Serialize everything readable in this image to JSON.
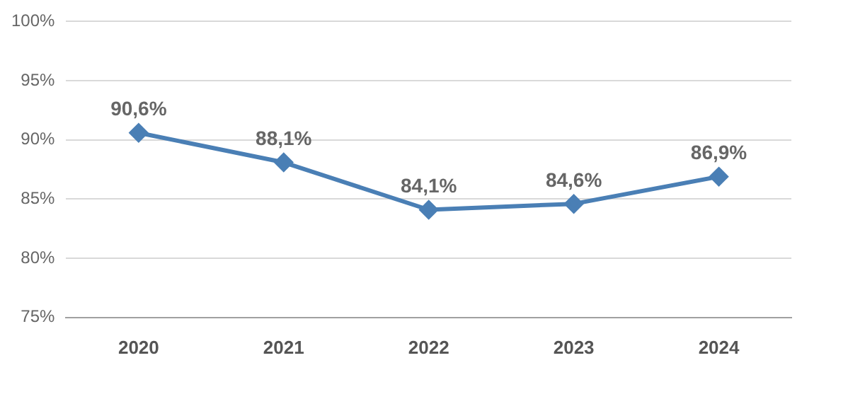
{
  "chart_data": {
    "type": "line",
    "categories": [
      "2020",
      "2021",
      "2022",
      "2023",
      "2024"
    ],
    "series": [
      {
        "color": "#4a7fb5",
        "values": [
          90.6,
          88.1,
          84.1,
          84.6,
          86.9
        ],
        "value_labels": [
          "90,6%",
          "88,1%",
          "84,1%",
          "84,6%",
          "86,9%"
        ]
      }
    ],
    "ylim": [
      75,
      100
    ],
    "yticks": [
      {
        "value": 75,
        "label": "75%"
      },
      {
        "value": 80,
        "label": "80%"
      },
      {
        "value": 85,
        "label": "85%"
      },
      {
        "value": 90,
        "label": "90%"
      },
      {
        "value": 95,
        "label": "95%"
      },
      {
        "value": 100,
        "label": "100%"
      }
    ],
    "grid": "y",
    "legend": false,
    "marker": "diamond",
    "line_style": "solid"
  }
}
